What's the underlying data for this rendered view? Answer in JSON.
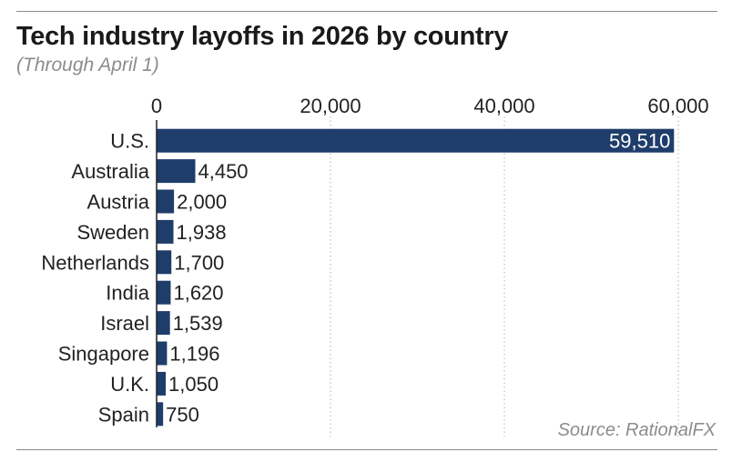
{
  "header": {
    "title": "Tech industry layoffs in 2026 by country",
    "subtitle": "(Through April 1)"
  },
  "footer": {
    "source": "Source: RationalFX"
  },
  "colors": {
    "bar": "#1f3d6b",
    "grid": "#bdbdbd",
    "axis": "#222222"
  },
  "chart_data": {
    "type": "bar",
    "orientation": "horizontal",
    "title": "Tech industry layoffs in 2026 by country",
    "subtitle": "(Through April 1)",
    "categories": [
      "U.S.",
      "Australia",
      "Austria",
      "Sweden",
      "Netherlands",
      "India",
      "Israel",
      "Singapore",
      "U.K.",
      "Spain"
    ],
    "values": [
      59510,
      4450,
      2000,
      1938,
      1700,
      1620,
      1539,
      1196,
      1050,
      750
    ],
    "value_labels": [
      "59,510",
      "4,450",
      "2,000",
      "1,938",
      "1,700",
      "1,620",
      "1,539",
      "1,196",
      "1,050",
      "750"
    ],
    "xlim": [
      0,
      60000
    ],
    "xticks": [
      0,
      20000,
      40000,
      60000
    ],
    "xtick_labels": [
      "0",
      "20,000",
      "40,000",
      "60,000"
    ],
    "xaxis_position": "top",
    "grid": "vertical dotted",
    "legend": "none",
    "source": "Source: RationalFX"
  }
}
